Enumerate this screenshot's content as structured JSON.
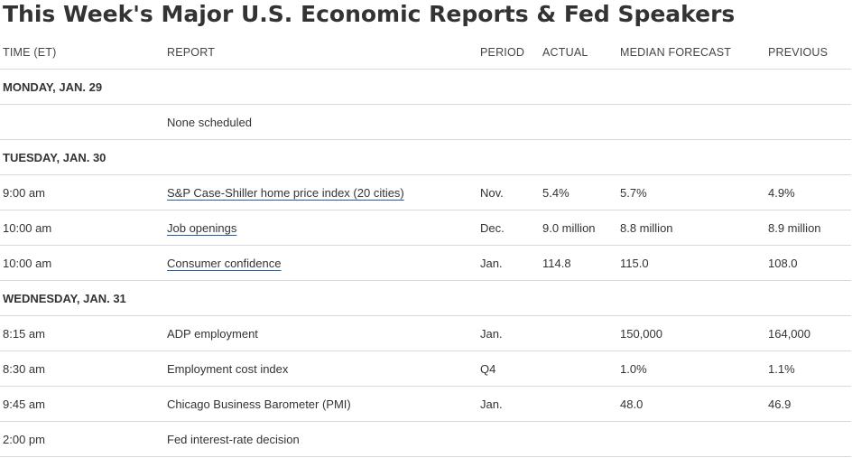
{
  "title": "This Week's Major U.S. Economic Reports & Fed Speakers",
  "columns": {
    "time": "TIME (ET)",
    "report": "REPORT",
    "period": "PERIOD",
    "actual": "ACTUAL",
    "median": "MEDIAN FORECAST",
    "previous": "PREVIOUS"
  },
  "days": [
    {
      "label": "MONDAY, JAN. 29",
      "rows": [
        {
          "time": "",
          "report": "None scheduled",
          "link": false,
          "period": "",
          "actual": "",
          "median": "",
          "previous": ""
        }
      ]
    },
    {
      "label": "TUESDAY, JAN. 30",
      "rows": [
        {
          "time": "9:00 am",
          "report": "S&P Case-Shiller home price index (20 cities)",
          "link": true,
          "period": "Nov.",
          "actual": "5.4%",
          "median": "5.7%",
          "previous": "4.9%"
        },
        {
          "time": "10:00 am",
          "report": "Job openings",
          "link": true,
          "period": "Dec.",
          "actual": "9.0 million",
          "median": "8.8 million",
          "previous": "8.9 million"
        },
        {
          "time": "10:00 am",
          "report": "Consumer confidence",
          "link": true,
          "period": "Jan.",
          "actual": "114.8",
          "median": "115.0",
          "previous": "108.0"
        }
      ]
    },
    {
      "label": "WEDNESDAY, JAN. 31",
      "rows": [
        {
          "time": "8:15 am",
          "report": "ADP employment",
          "link": false,
          "period": "Jan.",
          "actual": "",
          "median": "150,000",
          "previous": "164,000"
        },
        {
          "time": "8:30 am",
          "report": "Employment cost index",
          "link": false,
          "period": "Q4",
          "actual": "",
          "median": "1.0%",
          "previous": "1.1%"
        },
        {
          "time": "9:45 am",
          "report": "Chicago Business Barometer (PMI)",
          "link": false,
          "period": "Jan.",
          "actual": "",
          "median": "48.0",
          "previous": "46.9"
        },
        {
          "time": "2:00 pm",
          "report": "Fed interest-rate decision",
          "link": false,
          "period": "",
          "actual": "",
          "median": "",
          "previous": ""
        }
      ]
    }
  ]
}
